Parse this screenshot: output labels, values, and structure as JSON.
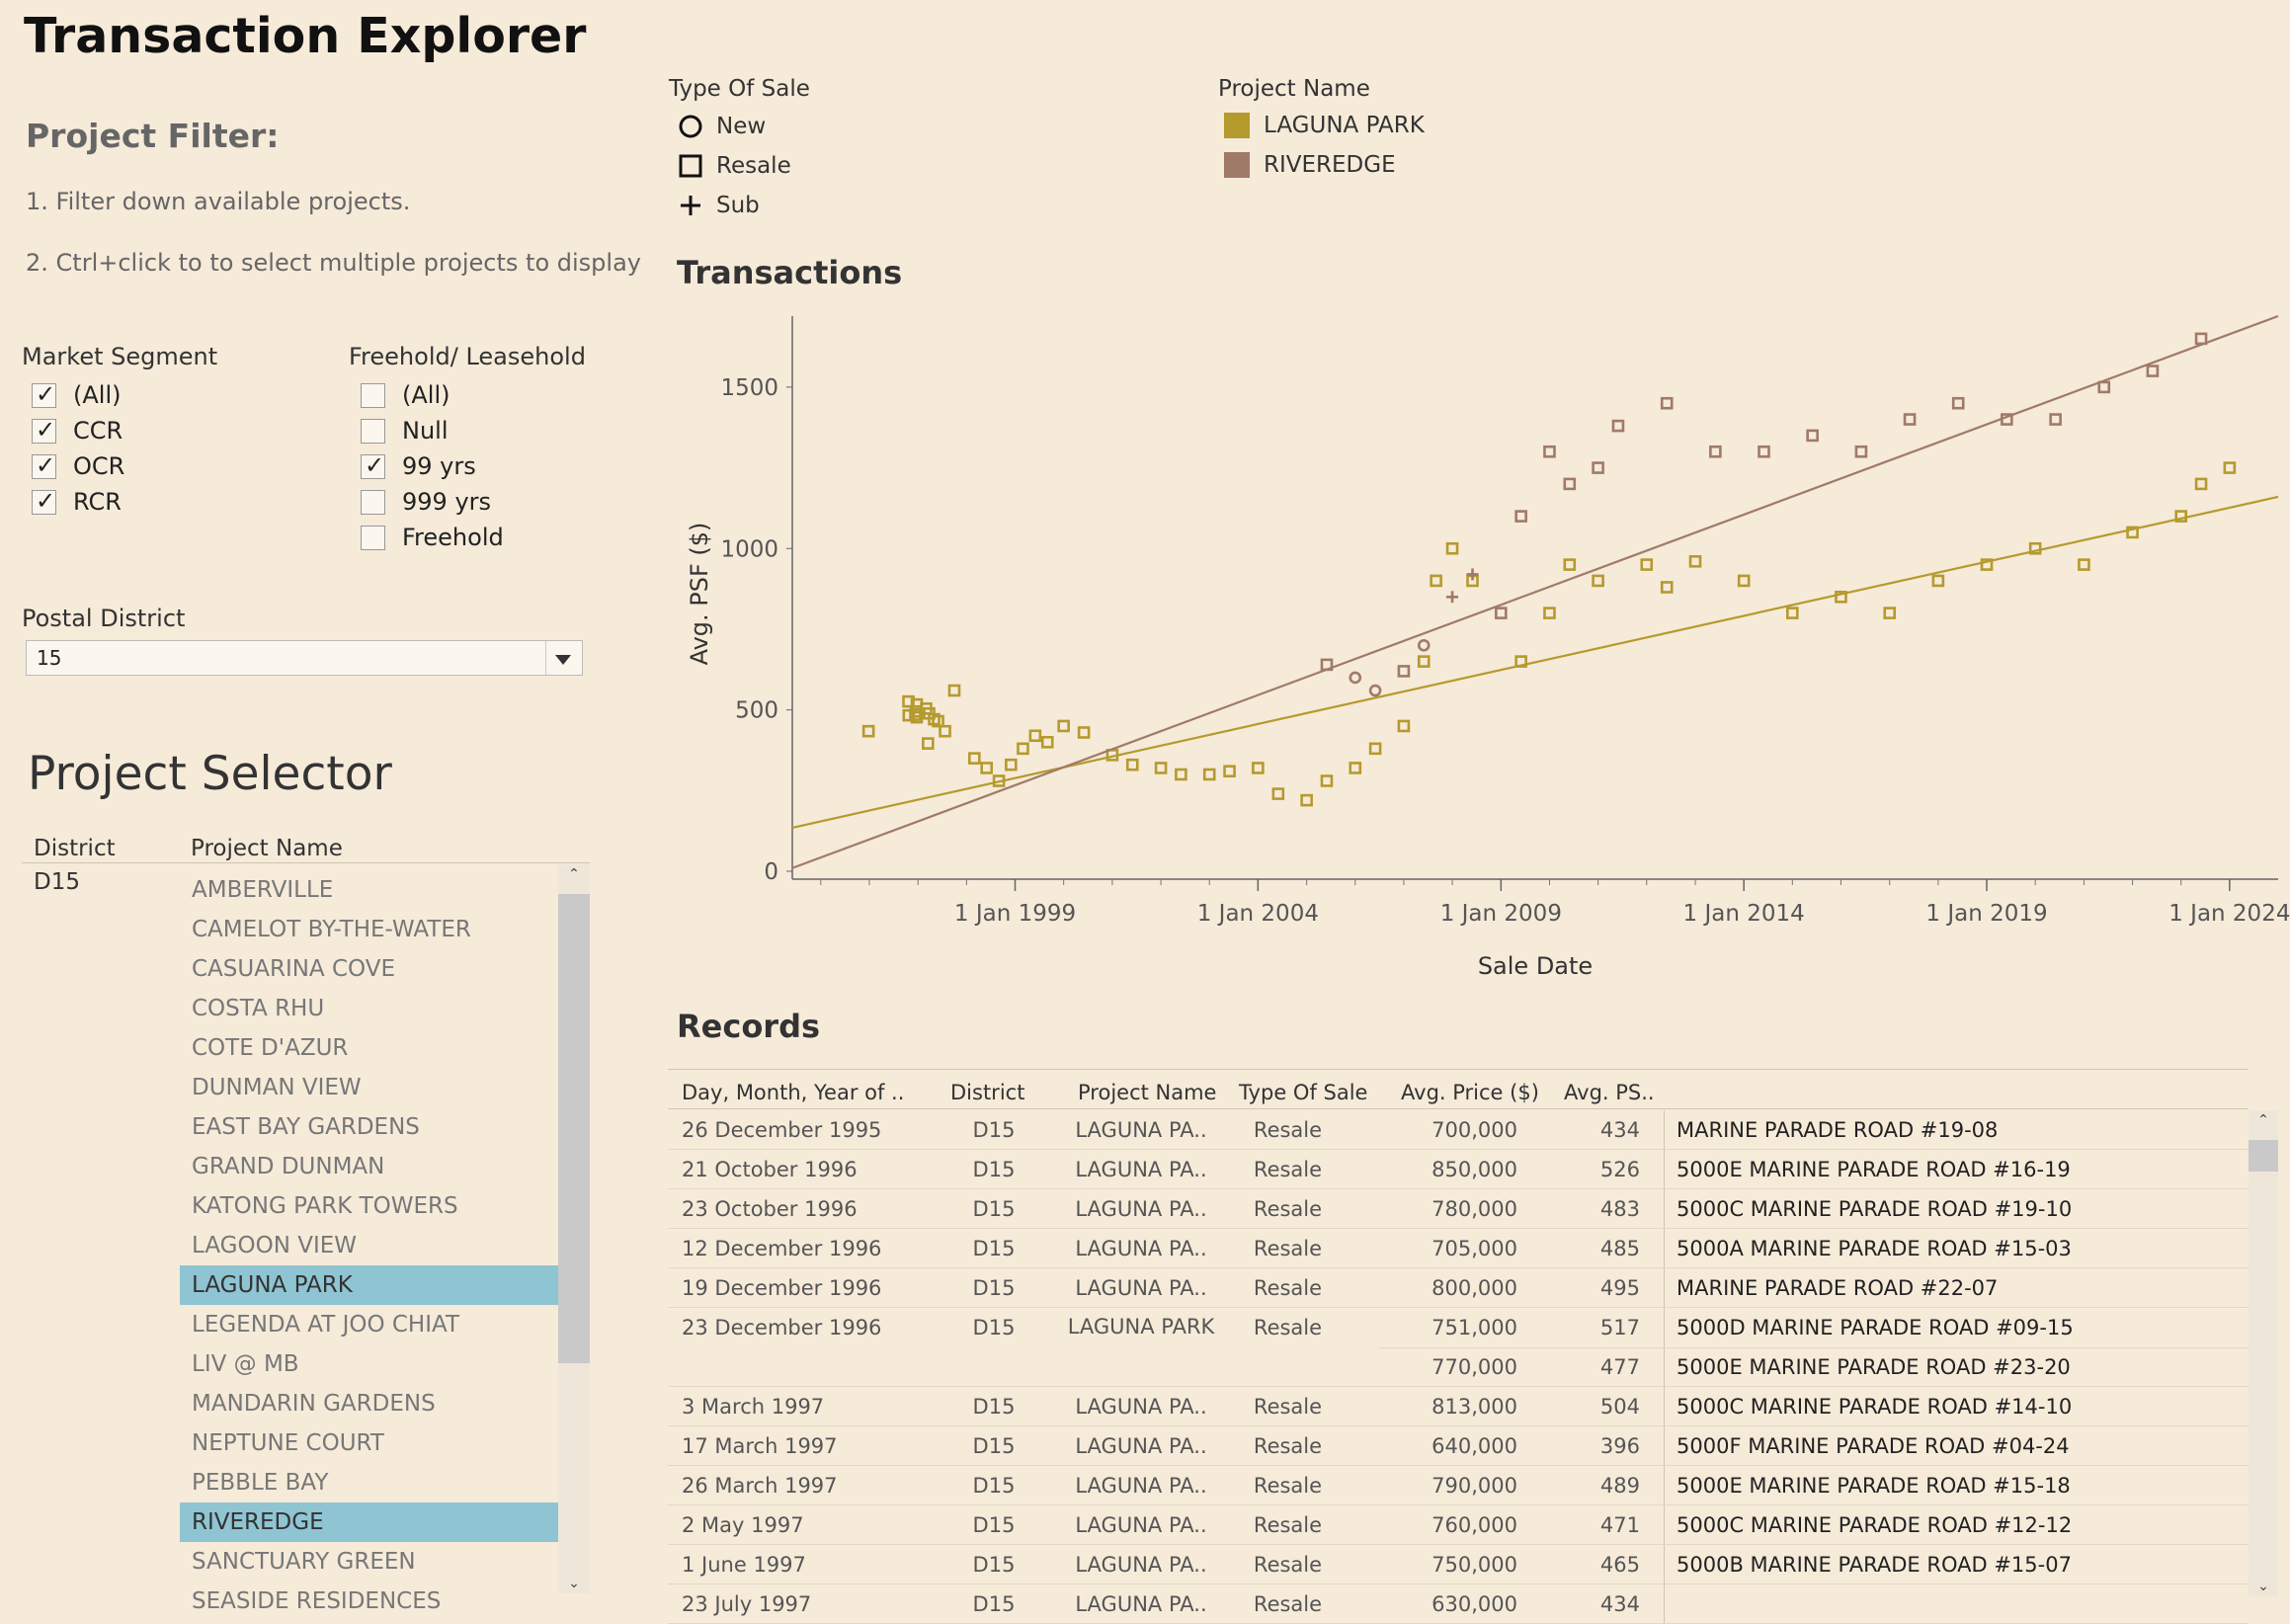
{
  "app": {
    "title": "Transaction Explorer"
  },
  "project_filter": {
    "heading": "Project Filter:",
    "instruction_1": "1. Filter down available projects.",
    "instruction_2": "2. Ctrl+click to to select multiple projects to display"
  },
  "market_segment": {
    "label": "Market Segment",
    "options": [
      {
        "label": "(All)",
        "checked": true
      },
      {
        "label": "CCR",
        "checked": true
      },
      {
        "label": "OCR",
        "checked": true
      },
      {
        "label": "RCR",
        "checked": true
      }
    ]
  },
  "tenure": {
    "label": "Freehold/ Leasehold",
    "options": [
      {
        "label": "(All)",
        "checked": false
      },
      {
        "label": "Null",
        "checked": false
      },
      {
        "label": "99 yrs",
        "checked": true
      },
      {
        "label": "999 yrs",
        "checked": false
      },
      {
        "label": "Freehold",
        "checked": false
      }
    ]
  },
  "postal_district": {
    "label": "Postal District",
    "value": "15"
  },
  "project_selector": {
    "title": "Project Selector",
    "col_district": "District",
    "col_project": "Project Name",
    "district": "D15",
    "projects": [
      {
        "name": "AMBERVILLE",
        "selected": false
      },
      {
        "name": "CAMELOT BY-THE-WATER",
        "selected": false
      },
      {
        "name": "CASUARINA COVE",
        "selected": false
      },
      {
        "name": "COSTA RHU",
        "selected": false
      },
      {
        "name": "COTE D'AZUR",
        "selected": false
      },
      {
        "name": "DUNMAN VIEW",
        "selected": false
      },
      {
        "name": "EAST BAY GARDENS",
        "selected": false
      },
      {
        "name": "GRAND DUNMAN",
        "selected": false
      },
      {
        "name": "KATONG PARK TOWERS",
        "selected": false
      },
      {
        "name": "LAGOON VIEW",
        "selected": false
      },
      {
        "name": "LAGUNA PARK",
        "selected": true
      },
      {
        "name": "LEGENDA AT JOO CHIAT",
        "selected": false
      },
      {
        "name": "LIV @ MB",
        "selected": false
      },
      {
        "name": "MANDARIN GARDENS",
        "selected": false
      },
      {
        "name": "NEPTUNE COURT",
        "selected": false
      },
      {
        "name": "PEBBLE BAY",
        "selected": false
      },
      {
        "name": "RIVEREDGE",
        "selected": true
      },
      {
        "name": "SANCTUARY GREEN",
        "selected": false
      },
      {
        "name": "SEASIDE RESIDENCES",
        "selected": false
      }
    ]
  },
  "legend_sale_type": {
    "title": "Type Of Sale",
    "items": [
      {
        "label": "New",
        "icon": "circle-marker-icon"
      },
      {
        "label": "Resale",
        "icon": "square-marker-icon"
      },
      {
        "label": "Sub",
        "icon": "plus-marker-icon"
      }
    ]
  },
  "legend_project": {
    "title": "Project Name",
    "items": [
      {
        "label": "LAGUNA PARK",
        "color": "#b59a2e"
      },
      {
        "label": "RIVEREDGE",
        "color": "#a07a68"
      }
    ]
  },
  "chart_data": {
    "type": "scatter",
    "title": "Transactions",
    "xlabel": "Sale Date",
    "ylabel": "Avg. PSF ($)",
    "x_ticks": [
      "1 Jan 1999",
      "1 Jan 2004",
      "1 Jan 2009",
      "1 Jan 2014",
      "1 Jan 2019",
      "1 Jan 2024"
    ],
    "y_ticks": [
      0,
      500,
      1000,
      1500
    ],
    "xlim": [
      "1994-06-01",
      "2024-12-31"
    ],
    "ylim": [
      0,
      1720
    ],
    "grid": false,
    "series": [
      {
        "name": "LAGUNA PARK",
        "color": "#b59a2e",
        "points": [
          {
            "x": "1995-12-26",
            "y": 434,
            "m": "Resale"
          },
          {
            "x": "1996-10-21",
            "y": 526,
            "m": "Resale"
          },
          {
            "x": "1996-10-23",
            "y": 483,
            "m": "Resale"
          },
          {
            "x": "1996-12-12",
            "y": 485,
            "m": "Resale"
          },
          {
            "x": "1996-12-19",
            "y": 495,
            "m": "Resale"
          },
          {
            "x": "1996-12-23",
            "y": 517,
            "m": "Resale"
          },
          {
            "x": "1996-12-23",
            "y": 477,
            "m": "Resale"
          },
          {
            "x": "1997-03-03",
            "y": 504,
            "m": "Resale"
          },
          {
            "x": "1997-03-17",
            "y": 396,
            "m": "Resale"
          },
          {
            "x": "1997-03-26",
            "y": 489,
            "m": "Resale"
          },
          {
            "x": "1997-05-02",
            "y": 471,
            "m": "Resale"
          },
          {
            "x": "1997-06-01",
            "y": 465,
            "m": "Resale"
          },
          {
            "x": "1997-07-23",
            "y": 434,
            "m": "Resale"
          },
          {
            "x": "1997-10-01",
            "y": 560,
            "m": "Resale"
          },
          {
            "x": "1998-03-01",
            "y": 350,
            "m": "Resale"
          },
          {
            "x": "1998-06-01",
            "y": 320,
            "m": "Resale"
          },
          {
            "x": "1998-09-01",
            "y": 280,
            "m": "Resale"
          },
          {
            "x": "1998-12-01",
            "y": 330,
            "m": "Resale"
          },
          {
            "x": "1999-03-01",
            "y": 380,
            "m": "Resale"
          },
          {
            "x": "1999-06-01",
            "y": 420,
            "m": "Resale"
          },
          {
            "x": "1999-09-01",
            "y": 400,
            "m": "Resale"
          },
          {
            "x": "2000-01-01",
            "y": 450,
            "m": "Resale"
          },
          {
            "x": "2000-06-01",
            "y": 430,
            "m": "Resale"
          },
          {
            "x": "2001-01-01",
            "y": 360,
            "m": "Resale"
          },
          {
            "x": "2001-06-01",
            "y": 330,
            "m": "Resale"
          },
          {
            "x": "2002-01-01",
            "y": 320,
            "m": "Resale"
          },
          {
            "x": "2002-06-01",
            "y": 300,
            "m": "Resale"
          },
          {
            "x": "2003-01-01",
            "y": 300,
            "m": "Resale"
          },
          {
            "x": "2003-06-01",
            "y": 310,
            "m": "Resale"
          },
          {
            "x": "2004-01-01",
            "y": 320,
            "m": "Resale"
          },
          {
            "x": "2004-06-01",
            "y": 240,
            "m": "Resale"
          },
          {
            "x": "2005-01-01",
            "y": 220,
            "m": "Resale"
          },
          {
            "x": "2005-06-01",
            "y": 280,
            "m": "Resale"
          },
          {
            "x": "2006-01-01",
            "y": 320,
            "m": "Resale"
          },
          {
            "x": "2006-06-01",
            "y": 380,
            "m": "Resale"
          },
          {
            "x": "2007-01-01",
            "y": 450,
            "m": "Resale"
          },
          {
            "x": "2007-06-01",
            "y": 650,
            "m": "Resale"
          },
          {
            "x": "2007-09-01",
            "y": 900,
            "m": "Resale"
          },
          {
            "x": "2008-01-01",
            "y": 1000,
            "m": "Resale"
          },
          {
            "x": "2008-06-01",
            "y": 900,
            "m": "Resale"
          },
          {
            "x": "2009-06-01",
            "y": 650,
            "m": "Resale"
          },
          {
            "x": "2010-01-01",
            "y": 800,
            "m": "Resale"
          },
          {
            "x": "2010-06-01",
            "y": 950,
            "m": "Resale"
          },
          {
            "x": "2011-01-01",
            "y": 900,
            "m": "Resale"
          },
          {
            "x": "2012-01-01",
            "y": 950,
            "m": "Resale"
          },
          {
            "x": "2012-06-01",
            "y": 880,
            "m": "Resale"
          },
          {
            "x": "2013-01-01",
            "y": 960,
            "m": "Resale"
          },
          {
            "x": "2014-01-01",
            "y": 900,
            "m": "Resale"
          },
          {
            "x": "2015-01-01",
            "y": 800,
            "m": "Resale"
          },
          {
            "x": "2016-01-01",
            "y": 850,
            "m": "Resale"
          },
          {
            "x": "2017-01-01",
            "y": 800,
            "m": "Resale"
          },
          {
            "x": "2018-01-01",
            "y": 900,
            "m": "Resale"
          },
          {
            "x": "2019-01-01",
            "y": 950,
            "m": "Resale"
          },
          {
            "x": "2020-01-01",
            "y": 1000,
            "m": "Resale"
          },
          {
            "x": "2021-01-01",
            "y": 950,
            "m": "Resale"
          },
          {
            "x": "2022-01-01",
            "y": 1050,
            "m": "Resale"
          },
          {
            "x": "2023-01-01",
            "y": 1100,
            "m": "Resale"
          },
          {
            "x": "2023-06-01",
            "y": 1200,
            "m": "Resale"
          },
          {
            "x": "2024-01-01",
            "y": 1250,
            "m": "Resale"
          }
        ],
        "trend": [
          {
            "x": "1994-06-01",
            "y": 135
          },
          {
            "x": "2024-12-31",
            "y": 1160
          }
        ]
      },
      {
        "name": "RIVEREDGE",
        "color": "#a07a68",
        "points": [
          {
            "x": "2005-06-01",
            "y": 640,
            "m": "Resale"
          },
          {
            "x": "2006-01-01",
            "y": 600,
            "m": "New"
          },
          {
            "x": "2006-06-01",
            "y": 560,
            "m": "New"
          },
          {
            "x": "2007-01-01",
            "y": 620,
            "m": "Resale"
          },
          {
            "x": "2007-06-01",
            "y": 700,
            "m": "New"
          },
          {
            "x": "2008-01-01",
            "y": 850,
            "m": "Sub"
          },
          {
            "x": "2008-06-01",
            "y": 920,
            "m": "Sub"
          },
          {
            "x": "2009-01-01",
            "y": 800,
            "m": "Resale"
          },
          {
            "x": "2009-06-01",
            "y": 1100,
            "m": "Resale"
          },
          {
            "x": "2010-01-01",
            "y": 1300,
            "m": "Resale"
          },
          {
            "x": "2010-06-01",
            "y": 1200,
            "m": "Resale"
          },
          {
            "x": "2011-01-01",
            "y": 1250,
            "m": "Resale"
          },
          {
            "x": "2011-06-01",
            "y": 1380,
            "m": "Resale"
          },
          {
            "x": "2012-06-01",
            "y": 1450,
            "m": "Resale"
          },
          {
            "x": "2013-06-01",
            "y": 1300,
            "m": "Resale"
          },
          {
            "x": "2014-06-01",
            "y": 1300,
            "m": "Resale"
          },
          {
            "x": "2015-06-01",
            "y": 1350,
            "m": "Resale"
          },
          {
            "x": "2016-06-01",
            "y": 1300,
            "m": "Resale"
          },
          {
            "x": "2017-06-01",
            "y": 1400,
            "m": "Resale"
          },
          {
            "x": "2018-06-01",
            "y": 1450,
            "m": "Resale"
          },
          {
            "x": "2019-06-01",
            "y": 1400,
            "m": "Resale"
          },
          {
            "x": "2020-06-01",
            "y": 1400,
            "m": "Resale"
          },
          {
            "x": "2021-06-01",
            "y": 1500,
            "m": "Resale"
          },
          {
            "x": "2022-06-01",
            "y": 1550,
            "m": "Resale"
          },
          {
            "x": "2023-06-01",
            "y": 1650,
            "m": "Resale"
          }
        ],
        "trend": [
          {
            "x": "1994-06-01",
            "y": 10
          },
          {
            "x": "2024-12-31",
            "y": 1720
          }
        ]
      }
    ]
  },
  "records": {
    "title": "Records",
    "columns": [
      "Day, Month, Year of ..",
      "District",
      "Project Name",
      "Type Of Sale",
      "Avg. Price ($)",
      "Avg. PS.."
    ],
    "rows": [
      {
        "date": "26 December 1995",
        "district": "D15",
        "project": "LAGUNA PA..",
        "type": "Resale",
        "prices": [
          {
            "price": "700,000",
            "psf": "434",
            "address": "MARINE PARADE ROAD #19-08"
          }
        ]
      },
      {
        "date": "21 October 1996",
        "district": "D15",
        "project": "LAGUNA PA..",
        "type": "Resale",
        "prices": [
          {
            "price": "850,000",
            "psf": "526",
            "address": "5000E MARINE PARADE ROAD #16-19"
          }
        ]
      },
      {
        "date": "23 October 1996",
        "district": "D15",
        "project": "LAGUNA PA..",
        "type": "Resale",
        "prices": [
          {
            "price": "780,000",
            "psf": "483",
            "address": "5000C MARINE PARADE ROAD #19-10"
          }
        ]
      },
      {
        "date": "12 December 1996",
        "district": "D15",
        "project": "LAGUNA PA..",
        "type": "Resale",
        "prices": [
          {
            "price": "705,000",
            "psf": "485",
            "address": "5000A MARINE PARADE ROAD #15-03"
          }
        ]
      },
      {
        "date": "19 December 1996",
        "district": "D15",
        "project": "LAGUNA PA..",
        "type": "Resale",
        "prices": [
          {
            "price": "800,000",
            "psf": "495",
            "address": "MARINE PARADE ROAD #22-07"
          }
        ]
      },
      {
        "date": "23 December 1996",
        "district": "D15",
        "project": "LAGUNA PARK",
        "type": "Resale",
        "prices": [
          {
            "price": "751,000",
            "psf": "517",
            "address": "5000D MARINE PARADE ROAD #09-15"
          },
          {
            "price": "770,000",
            "psf": "477",
            "address": "5000E MARINE PARADE ROAD #23-20"
          }
        ]
      },
      {
        "date": "3 March 1997",
        "district": "D15",
        "project": "LAGUNA PA..",
        "type": "Resale",
        "prices": [
          {
            "price": "813,000",
            "psf": "504",
            "address": "5000C MARINE PARADE ROAD #14-10"
          }
        ]
      },
      {
        "date": "17 March 1997",
        "district": "D15",
        "project": "LAGUNA PA..",
        "type": "Resale",
        "prices": [
          {
            "price": "640,000",
            "psf": "396",
            "address": "5000F MARINE PARADE ROAD #04-24"
          }
        ]
      },
      {
        "date": "26 March 1997",
        "district": "D15",
        "project": "LAGUNA PA..",
        "type": "Resale",
        "prices": [
          {
            "price": "790,000",
            "psf": "489",
            "address": "5000E MARINE PARADE ROAD #15-18"
          }
        ]
      },
      {
        "date": "2 May 1997",
        "district": "D15",
        "project": "LAGUNA PA..",
        "type": "Resale",
        "prices": [
          {
            "price": "760,000",
            "psf": "471",
            "address": "5000C MARINE PARADE ROAD #12-12"
          }
        ]
      },
      {
        "date": "1 June 1997",
        "district": "D15",
        "project": "LAGUNA PA..",
        "type": "Resale",
        "prices": [
          {
            "price": "750,000",
            "psf": "465",
            "address": "5000B MARINE PARADE ROAD #15-07"
          }
        ]
      },
      {
        "date": "23 July 1997",
        "district": "D15",
        "project": "LAGUNA PA..",
        "type": "Resale",
        "prices": [
          {
            "price": "630,000",
            "psf": "434",
            "address": ""
          }
        ]
      }
    ]
  }
}
